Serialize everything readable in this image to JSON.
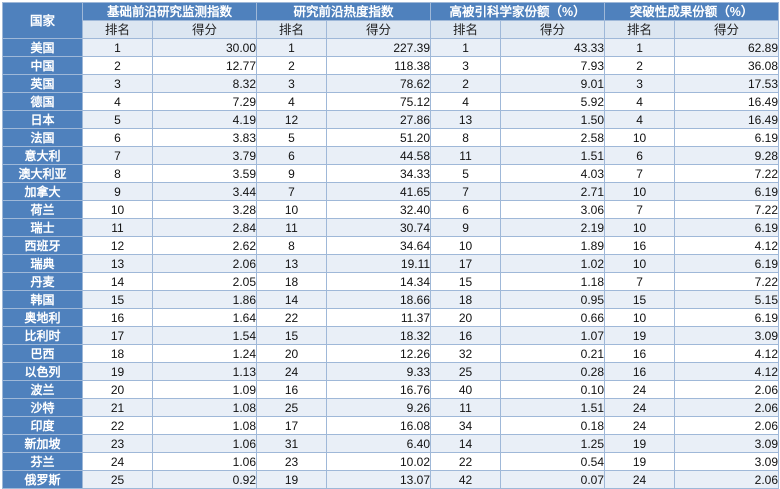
{
  "header": {
    "country": "国家",
    "groups": [
      "基础前沿研究监测指数",
      "研究前沿热度指数",
      "高被引科学家份额（%）",
      "突破性成果份额（%）"
    ],
    "sub": [
      "排名",
      "得分"
    ]
  },
  "rows": [
    {
      "country": "美国",
      "cells": [
        "1",
        "30.00",
        "1",
        "227.39",
        "1",
        "43.33",
        "1",
        "62.89"
      ]
    },
    {
      "country": "中国",
      "cells": [
        "2",
        "12.77",
        "2",
        "118.38",
        "3",
        "7.93",
        "2",
        "36.08"
      ]
    },
    {
      "country": "英国",
      "cells": [
        "3",
        "8.32",
        "3",
        "78.62",
        "2",
        "9.01",
        "3",
        "17.53"
      ]
    },
    {
      "country": "德国",
      "cells": [
        "4",
        "7.29",
        "4",
        "75.12",
        "4",
        "5.92",
        "4",
        "16.49"
      ]
    },
    {
      "country": "日本",
      "cells": [
        "5",
        "4.19",
        "12",
        "27.86",
        "13",
        "1.50",
        "4",
        "16.49"
      ]
    },
    {
      "country": "法国",
      "cells": [
        "6",
        "3.83",
        "5",
        "51.20",
        "8",
        "2.58",
        "10",
        "6.19"
      ]
    },
    {
      "country": "意大利",
      "cells": [
        "7",
        "3.79",
        "6",
        "44.58",
        "11",
        "1.51",
        "6",
        "9.28"
      ]
    },
    {
      "country": "澳大利亚",
      "cells": [
        "8",
        "3.59",
        "9",
        "34.33",
        "5",
        "4.03",
        "7",
        "7.22"
      ]
    },
    {
      "country": "加拿大",
      "cells": [
        "9",
        "3.44",
        "7",
        "41.65",
        "7",
        "2.71",
        "10",
        "6.19"
      ]
    },
    {
      "country": "荷兰",
      "cells": [
        "10",
        "3.28",
        "10",
        "32.40",
        "6",
        "3.06",
        "7",
        "7.22"
      ]
    },
    {
      "country": "瑞士",
      "cells": [
        "11",
        "2.84",
        "11",
        "30.74",
        "9",
        "2.19",
        "10",
        "6.19"
      ]
    },
    {
      "country": "西班牙",
      "cells": [
        "12",
        "2.62",
        "8",
        "34.64",
        "10",
        "1.89",
        "16",
        "4.12"
      ]
    },
    {
      "country": "瑞典",
      "cells": [
        "13",
        "2.06",
        "13",
        "19.11",
        "17",
        "1.02",
        "10",
        "6.19"
      ]
    },
    {
      "country": "丹麦",
      "cells": [
        "14",
        "2.05",
        "18",
        "14.34",
        "15",
        "1.18",
        "7",
        "7.22"
      ]
    },
    {
      "country": "韩国",
      "cells": [
        "15",
        "1.86",
        "14",
        "18.66",
        "18",
        "0.95",
        "15",
        "5.15"
      ]
    },
    {
      "country": "奥地利",
      "cells": [
        "16",
        "1.64",
        "22",
        "11.37",
        "20",
        "0.66",
        "10",
        "6.19"
      ]
    },
    {
      "country": "比利时",
      "cells": [
        "17",
        "1.54",
        "15",
        "18.32",
        "16",
        "1.07",
        "19",
        "3.09"
      ]
    },
    {
      "country": "巴西",
      "cells": [
        "18",
        "1.24",
        "20",
        "12.26",
        "32",
        "0.21",
        "16",
        "4.12"
      ]
    },
    {
      "country": "以色列",
      "cells": [
        "19",
        "1.13",
        "24",
        "9.33",
        "25",
        "0.28",
        "16",
        "4.12"
      ]
    },
    {
      "country": "波兰",
      "cells": [
        "20",
        "1.09",
        "16",
        "16.76",
        "40",
        "0.10",
        "24",
        "2.06"
      ]
    },
    {
      "country": "沙特",
      "cells": [
        "21",
        "1.08",
        "25",
        "9.26",
        "11",
        "1.51",
        "24",
        "2.06"
      ]
    },
    {
      "country": "印度",
      "cells": [
        "22",
        "1.08",
        "17",
        "16.08",
        "34",
        "0.18",
        "24",
        "2.06"
      ]
    },
    {
      "country": "新加坡",
      "cells": [
        "23",
        "1.06",
        "31",
        "6.40",
        "14",
        "1.25",
        "19",
        "3.09"
      ]
    },
    {
      "country": "芬兰",
      "cells": [
        "24",
        "1.06",
        "23",
        "10.02",
        "22",
        "0.54",
        "19",
        "3.09"
      ]
    },
    {
      "country": "俄罗斯",
      "cells": [
        "25",
        "0.92",
        "19",
        "13.07",
        "42",
        "0.07",
        "24",
        "2.06"
      ]
    }
  ]
}
